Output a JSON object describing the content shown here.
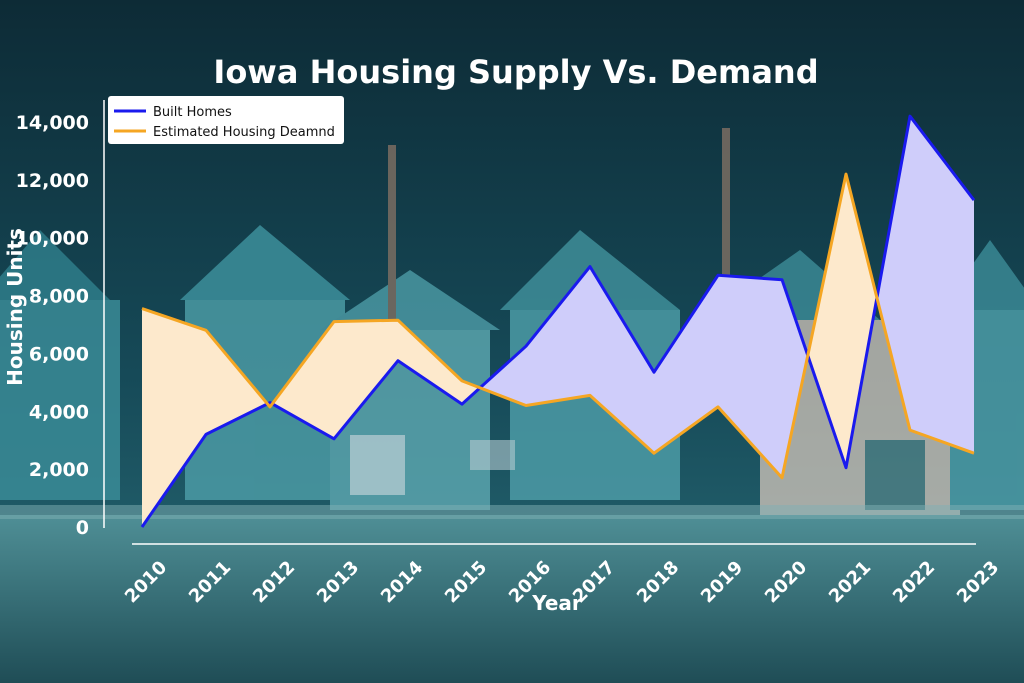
{
  "chart_data": {
    "type": "area",
    "title": "Iowa Housing Supply Vs. Demand",
    "xlabel": "Year",
    "ylabel": "Housing Units",
    "x": [
      "2010",
      "2011",
      "2012",
      "2013",
      "2014",
      "2015",
      "2016",
      "2017",
      "2018",
      "2019",
      "2020",
      "2021",
      "2022",
      "2023"
    ],
    "yticks": [
      "0",
      "2,000",
      "4,000",
      "6,000",
      "8,000",
      "10,000",
      "12,000",
      "14,000"
    ],
    "ylim": [
      0,
      14000
    ],
    "legend_position": "top-left",
    "series": [
      {
        "name": "Built Homes",
        "color": "#1a1aee",
        "values": [
          0,
          3200,
          4300,
          3050,
          5750,
          4250,
          6250,
          9000,
          5350,
          8700,
          8550,
          2050,
          14200,
          11300
        ]
      },
      {
        "name": "Estimated Housing Deamnd",
        "color": "#f5a623",
        "values": [
          7550,
          6800,
          4150,
          7100,
          7150,
          5050,
          4200,
          4550,
          2550,
          4150,
          1700,
          12200,
          3350,
          2550
        ]
      }
    ],
    "fill_supply_above": "#cfcdfa",
    "fill_demand_above": "#fde9cc"
  }
}
